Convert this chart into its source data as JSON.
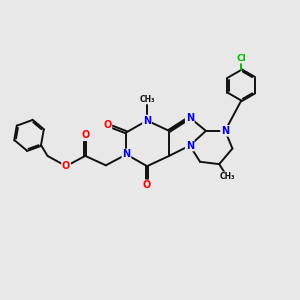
{
  "bg_color": "#e8e8e8",
  "atom_colors": {
    "N": "#0000ee",
    "O": "#ff0000",
    "C": "#111111",
    "Cl": "#00bb00"
  },
  "bond_color": "#111111",
  "bond_width": 1.4,
  "xlim": [
    0,
    10
  ],
  "ylim": [
    0,
    10
  ]
}
